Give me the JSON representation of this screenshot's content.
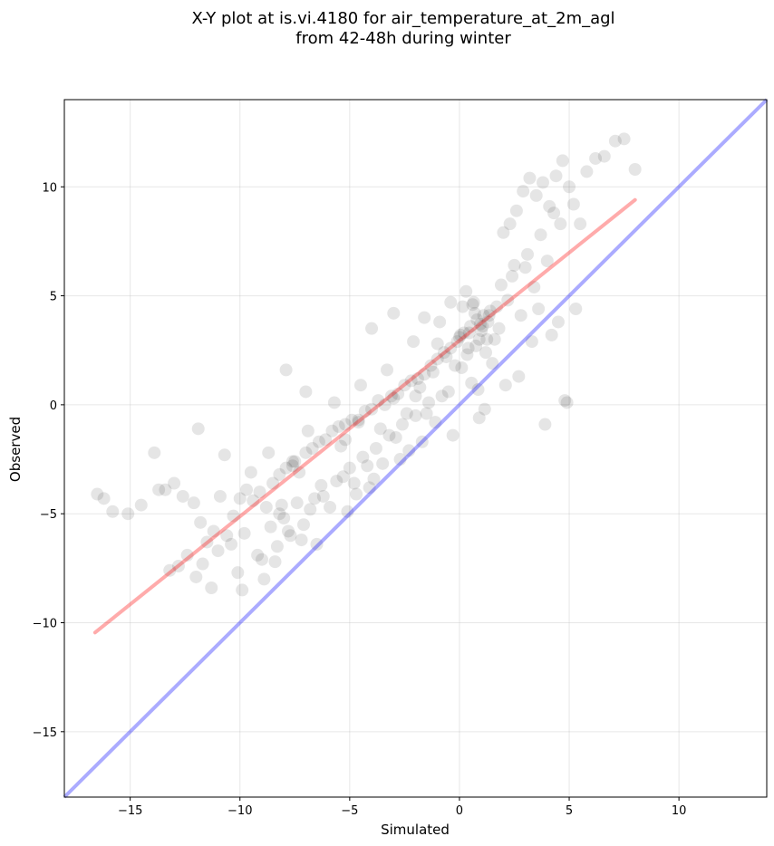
{
  "chart_data": {
    "type": "scatter",
    "title_line1": "X-Y plot at is.vi.4180 for air_temperature_at_2m_agl",
    "title_line2": "from 42-48h during winter",
    "xlabel": "Simulated",
    "ylabel": "Observed",
    "xlim": [
      -18,
      14
    ],
    "ylim": [
      -18,
      14
    ],
    "xticks": [
      -15,
      -10,
      -5,
      0,
      5,
      10
    ],
    "yticks": [
      -15,
      -10,
      -5,
      0,
      5,
      10
    ],
    "xtick_labels": [
      "−15",
      "−10",
      "−5",
      "0",
      "5",
      "10"
    ],
    "ytick_labels": [
      "−15",
      "−10",
      "−5",
      "0",
      "5",
      "10"
    ],
    "grid": true,
    "colors": {
      "points": "#000000",
      "fit_line": "#ff0000",
      "identity_line": "#0000ff"
    },
    "fit_line": {
      "x": [
        -16.6,
        8.0
      ],
      "y": [
        -10.45,
        9.4
      ]
    },
    "identity_line": {
      "x": [
        -18,
        14
      ],
      "y": [
        -18,
        14
      ]
    },
    "points": {
      "x": [
        -16.5,
        -16.2,
        -15.8,
        -15.1,
        -14.5,
        -13.9,
        -13.4,
        -13.0,
        -12.6,
        -12.1,
        -11.8,
        -11.5,
        -11.2,
        -10.9,
        -10.6,
        -10.3,
        -10.0,
        -9.7,
        -9.4,
        -9.1,
        -8.8,
        -8.5,
        -8.2,
        -7.9,
        -7.6,
        -7.3,
        -7.0,
        -6.7,
        -6.4,
        -6.1,
        -5.8,
        -5.5,
        -5.2,
        -4.9,
        -4.6,
        -4.3,
        -4.0,
        -3.7,
        -3.4,
        -3.1,
        -2.8,
        -2.5,
        -2.2,
        -1.9,
        -1.6,
        -1.3,
        -1.0,
        -0.7,
        -0.4,
        -0.1,
        0.2,
        0.5,
        0.8,
        1.1,
        1.4,
        1.7,
        2.0,
        2.3,
        2.6,
        2.9,
        3.2,
        3.5,
        3.8,
        4.1,
        4.4,
        4.7,
        5.0,
        5.5,
        6.2,
        7.1,
        8.0,
        -13.7,
        -13.2,
        -12.4,
        -12.0,
        -11.7,
        -11.0,
        -10.4,
        -9.8,
        -9.2,
        -8.6,
        -8.0,
        -7.4,
        -6.8,
        -6.2,
        -5.6,
        -5.0,
        -4.4,
        -3.8,
        -3.2,
        -2.6,
        -2.0,
        -1.4,
        -0.8,
        -0.2,
        0.4,
        1.0,
        1.6,
        2.2,
        2.8,
        3.4,
        4.0,
        4.6,
        5.2,
        5.8,
        6.6,
        7.5,
        -12.8,
        -11.3,
        -10.1,
        -9.0,
        -8.3,
        -7.7,
        -7.1,
        -6.5,
        -5.9,
        -5.3,
        -4.7,
        -4.1,
        -3.5,
        -2.9,
        -2.3,
        -1.7,
        -1.1,
        -0.5,
        0.1,
        0.7,
        1.3,
        1.9,
        2.5,
        3.1,
        3.7,
        4.3,
        -9.9,
        -8.9,
        -8.4,
        -7.8,
        -7.2,
        -6.6,
        -5.4,
        -4.8,
        -4.2,
        -3.6,
        -3.0,
        -2.4,
        -1.8,
        -1.2,
        -0.6,
        0.0,
        0.3,
        0.6,
        0.9,
        1.2,
        1.5,
        -8.7,
        -7.5,
        -6.3,
        -5.1,
        -3.9,
        -2.7,
        -1.5,
        -0.3,
        0.9,
        2.1,
        3.3,
        4.5,
        -11.9,
        -10.7,
        -9.5,
        -8.1,
        -6.9,
        -5.7,
        -4.5,
        -3.3,
        -2.1,
        -0.9,
        0.15,
        0.45,
        0.75,
        1.05,
        1.35,
        2.4,
        3.0,
        3.6,
        4.2,
        4.8,
        -7.9,
        -7.0,
        -4.0,
        -3.0,
        -2.0,
        -1.0,
        0.05,
        0.35,
        0.65,
        0.95,
        1.25,
        1.8,
        2.7,
        -8.2,
        -7.6,
        -5.2,
        -4.6,
        -1.6,
        -0.4,
        0.55,
        0.85,
        1.15,
        3.9,
        4.9,
        5.3
      ],
      "y": [
        -4.1,
        -4.3,
        -4.9,
        -5.0,
        -4.6,
        -2.2,
        -3.9,
        -3.6,
        -4.2,
        -4.5,
        -5.4,
        -6.3,
        -5.8,
        -4.2,
        -6.0,
        -5.1,
        -4.3,
        -3.9,
        -4.4,
        -4.0,
        -4.7,
        -3.6,
        -3.2,
        -2.9,
        -2.6,
        -3.1,
        -2.2,
        -2.0,
        -1.7,
        -1.6,
        -1.2,
        -1.0,
        -0.9,
        -0.7,
        -0.8,
        -0.3,
        -0.2,
        0.2,
        0.0,
        0.4,
        0.5,
        0.9,
        1.1,
        1.2,
        1.4,
        1.8,
        2.1,
        2.4,
        2.6,
        2.9,
        3.3,
        3.6,
        3.9,
        4.1,
        4.3,
        4.5,
        7.9,
        8.3,
        8.9,
        9.8,
        10.4,
        9.6,
        10.2,
        9.1,
        10.5,
        11.2,
        10.0,
        8.3,
        11.3,
        12.1,
        10.8,
        -3.9,
        -7.6,
        -6.9,
        -7.9,
        -7.3,
        -6.7,
        -6.4,
        -5.9,
        -6.9,
        -5.6,
        -5.2,
        -4.5,
        -4.8,
        -4.2,
        -3.5,
        -2.9,
        -2.4,
        -2.0,
        -1.4,
        -0.9,
        -0.5,
        0.1,
        0.4,
        1.8,
        2.6,
        3.4,
        3.0,
        4.8,
        4.1,
        5.4,
        6.6,
        8.3,
        9.2,
        10.7,
        11.4,
        12.2,
        -7.4,
        -8.4,
        -7.7,
        -7.1,
        -6.5,
        -6.0,
        -5.5,
        -6.4,
        -4.7,
        -3.3,
        -4.1,
        -3.8,
        -2.7,
        -1.5,
        -2.1,
        -1.7,
        -0.8,
        0.6,
        1.7,
        4.2,
        3.8,
        5.5,
        6.4,
        6.9,
        7.8,
        8.8,
        -8.5,
        -8.0,
        -7.2,
        -5.8,
        -6.2,
        -4.3,
        -1.9,
        -3.6,
        -2.8,
        -1.1,
        0.3,
        -0.4,
        0.8,
        1.5,
        2.2,
        3.1,
        5.2,
        4.6,
        3.0,
        2.4,
        1.9,
        -2.2,
        -2.6,
        -3.7,
        -4.9,
        -3.4,
        -2.5,
        -0.4,
        -1.4,
        -0.6,
        0.9,
        2.9,
        3.8,
        -1.1,
        -2.3,
        -3.1,
        -4.6,
        -1.2,
        0.1,
        0.9,
        1.6,
        2.9,
        3.8,
        4.5,
        3.3,
        2.7,
        3.6,
        4.1,
        5.9,
        6.3,
        4.4,
        3.2,
        0.2,
        1.6,
        0.6,
        3.5,
        4.2,
        0.4,
        2.8,
        3.2,
        2.3,
        4.7,
        3.7,
        3.0,
        3.5,
        1.3,
        -5.0,
        -2.8,
        -1.6,
        -0.7,
        4.0,
        4.7,
        1.0,
        0.7,
        -0.2,
        -0.9,
        0.1,
        4.4
      ]
    }
  }
}
